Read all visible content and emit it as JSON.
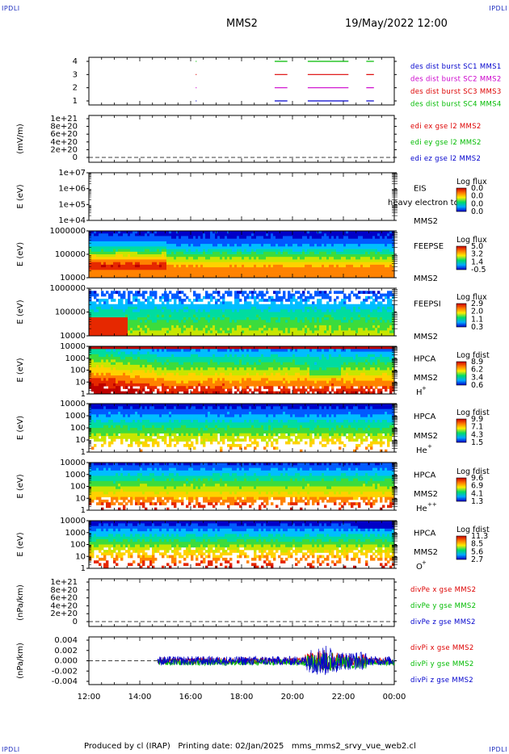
{
  "header": {
    "corner_label": "IPDLI",
    "spacecraft": "MMS2",
    "datetime": "19/May/2022 12:00"
  },
  "footer": {
    "text": "Produced by cl (IRAP)   Printing date: 02/Jan/2025   mms_mms2_srvy_vue_web2.cl"
  },
  "colors": {
    "mms1": "#0000cc",
    "mms2": "#cc00cc",
    "mms3": "#dd0000",
    "mms4": "#00bb00",
    "x": "#dd0000",
    "y": "#00bb00",
    "z": "#0000cc"
  },
  "chart_data": [
    {
      "id": "burst",
      "type": "line",
      "yticks": [
        "4",
        "3",
        "2",
        "1"
      ],
      "legend": [
        {
          "label": "des dist burst SC1 MMS1",
          "color": "#0000cc"
        },
        {
          "label": "des dist burst SC2 MMS2",
          "color": "#cc00cc"
        },
        {
          "label": "des dist burst SC3 MMS3",
          "color": "#dd0000"
        },
        {
          "label": "des dist burst SC4 MMS4",
          "color": "#00bb00"
        }
      ],
      "segments": [
        {
          "level": 4,
          "color": "#00bb00",
          "ranges": [
            [
              16.2,
              16.22
            ],
            [
              19.3,
              19.8
            ],
            [
              20.6,
              22.2
            ],
            [
              22.9,
              23.2
            ]
          ]
        },
        {
          "level": 3,
          "color": "#dd0000",
          "ranges": [
            [
              16.2,
              16.22
            ],
            [
              19.3,
              19.8
            ],
            [
              20.6,
              22.2
            ],
            [
              22.9,
              23.2
            ]
          ]
        },
        {
          "level": 2,
          "color": "#cc00cc",
          "ranges": [
            [
              16.2,
              16.22
            ],
            [
              19.3,
              19.8
            ],
            [
              20.6,
              22.2
            ],
            [
              22.9,
              23.2
            ]
          ]
        },
        {
          "level": 1,
          "color": "#0000cc",
          "ranges": [
            [
              16.2,
              16.22
            ],
            [
              19.3,
              19.8
            ],
            [
              20.6,
              22.2
            ],
            [
              22.9,
              23.2
            ]
          ]
        }
      ]
    },
    {
      "id": "edi",
      "type": "line",
      "ylabel": "(mV/m)",
      "yticks": [
        "1e+21",
        "8e+20",
        "6e+20",
        "4e+20",
        "2e+20",
        "0"
      ],
      "legend": [
        {
          "label": "edi ex gse l2 MMS2",
          "color": "#dd0000"
        },
        {
          "label": "edi ey gse l2 MMS2",
          "color": "#00bb00"
        },
        {
          "label": "edi ez gse l2 MMS2",
          "color": "#0000cc"
        }
      ]
    },
    {
      "id": "eis",
      "type": "heatmap",
      "ylabel": "E (eV)",
      "yticks": [
        "1e+07",
        "1e+06",
        "1e+05",
        "1e+04"
      ],
      "inst": "EIS",
      "sc": "MMS2",
      "overlay_text": "heavy electron to",
      "cbar_title": "Log flux",
      "cbar_ticks": [
        "0.0",
        "0.0",
        "0.0",
        "0.0"
      ]
    },
    {
      "id": "feepse",
      "type": "heatmap",
      "ylabel": "E (eV)",
      "yticks": [
        "1000000",
        "100000",
        "10000"
      ],
      "inst": "FEEPSE",
      "sc": "MMS2",
      "cbar_title": "Log flux",
      "cbar_ticks": [
        "5.0",
        "3.2",
        "1.4",
        "-0.5"
      ]
    },
    {
      "id": "feepsi",
      "type": "heatmap",
      "ylabel": "E (eV)",
      "yticks": [
        "1000000",
        "100000",
        "10000"
      ],
      "inst": "FEEPSI",
      "sc": "MMS2",
      "cbar_title": "Log flux",
      "cbar_ticks": [
        "2.9",
        "2.0",
        "1.1",
        "0.3"
      ]
    },
    {
      "id": "hpca_h",
      "type": "heatmap",
      "ylabel": "E (eV)",
      "yticks": [
        "10000",
        "1000",
        "100",
        "10",
        "1"
      ],
      "inst": "HPCA",
      "sc": "MMS2",
      "species": "H",
      "charge": "+",
      "cbar_title": "Log fdist",
      "cbar_ticks": [
        "8.9",
        "6.2",
        "3.4",
        "0.6"
      ]
    },
    {
      "id": "hpca_he",
      "type": "heatmap",
      "ylabel": "E (eV)",
      "yticks": [
        "10000",
        "1000",
        "100",
        "10",
        "1"
      ],
      "inst": "HPCA",
      "sc": "MMS2",
      "species": "He",
      "charge": "+",
      "cbar_title": "Log fdist",
      "cbar_ticks": [
        "9.9",
        "7.1",
        "4.3",
        "1.5"
      ]
    },
    {
      "id": "hpca_hepp",
      "type": "heatmap",
      "ylabel": "E (eV)",
      "yticks": [
        "10000",
        "1000",
        "100",
        "10",
        "1"
      ],
      "inst": "HPCA",
      "sc": "MMS2",
      "species": "He",
      "charge": "++",
      "cbar_title": "Log fdist",
      "cbar_ticks": [
        "9.6",
        "6.9",
        "4.1",
        "1.3"
      ]
    },
    {
      "id": "hpca_o",
      "type": "heatmap",
      "ylabel": "E (eV)",
      "yticks": [
        "10000",
        "1000",
        "100",
        "10",
        "1"
      ],
      "inst": "HPCA",
      "sc": "MMS2",
      "species": "O",
      "charge": "+",
      "cbar_title": "Log fdist",
      "cbar_ticks": [
        "11.3",
        "8.5",
        "5.6",
        "2.7"
      ]
    },
    {
      "id": "divpe",
      "type": "line",
      "ylabel": "(nPa/km)",
      "yticks": [
        "1e+21",
        "8e+20",
        "6e+20",
        "4e+20",
        "2e+20",
        "0"
      ],
      "legend": [
        {
          "label": "divPe x gse MMS2",
          "color": "#dd0000"
        },
        {
          "label": "divPe y gse MMS2",
          "color": "#00bb00"
        },
        {
          "label": "divPe z gse MMS2",
          "color": "#0000cc"
        }
      ]
    },
    {
      "id": "divpi",
      "type": "line",
      "ylabel": "(nPa/km)",
      "yticks": [
        "0.004",
        "0.002",
        "0.000",
        "-0.002",
        "-0.004"
      ],
      "ylim": [
        -0.005,
        0.005
      ],
      "data_start": 14.7,
      "legend": [
        {
          "label": "divPi x gse MMS2",
          "color": "#dd0000"
        },
        {
          "label": "divPi y gse MMS2",
          "color": "#00bb00"
        },
        {
          "label": "divPi z gse MMS2",
          "color": "#0000cc"
        }
      ]
    }
  ],
  "xaxis": {
    "range": [
      12,
      24
    ],
    "tick_values": [
      12,
      14,
      16,
      18,
      20,
      22,
      24
    ],
    "tick_labels": [
      "12:00",
      "14:00",
      "16:00",
      "18:00",
      "20:00",
      "22:00",
      "00:00"
    ]
  }
}
